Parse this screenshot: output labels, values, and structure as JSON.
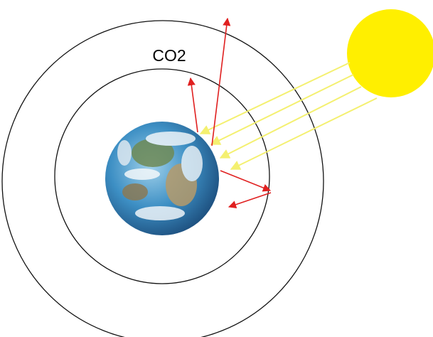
{
  "labels": {
    "gas": "CO2"
  }
}
